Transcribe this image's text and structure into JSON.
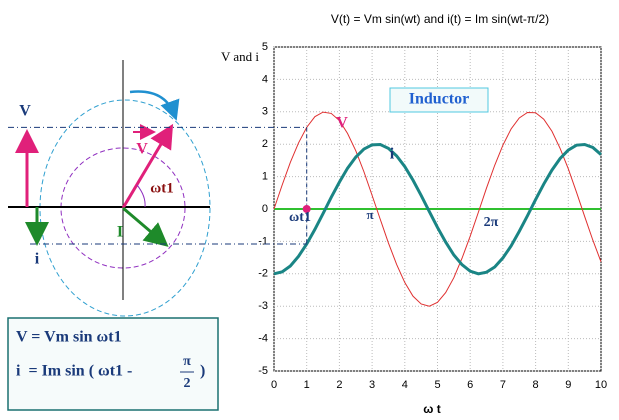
{
  "chart_data": {
    "type": "line",
    "title": "V(t) = Vm sin(wt) and i(t) = Im sin(wt-π/2)",
    "y_label": "V and i",
    "x_label": "ω t",
    "x": [
      0,
      0.25,
      0.5,
      0.75,
      1,
      1.25,
      1.5,
      1.75,
      2,
      2.25,
      2.5,
      2.75,
      3,
      3.25,
      3.5,
      3.75,
      4,
      4.25,
      4.5,
      4.75,
      5,
      5.25,
      5.5,
      5.75,
      6,
      6.25,
      6.5,
      6.75,
      7,
      7.25,
      7.5,
      7.75,
      8,
      8.25,
      8.5,
      8.75,
      9,
      9.25,
      9.5,
      9.75,
      10
    ],
    "series": [
      {
        "name": "V",
        "color": "#e03030",
        "values": [
          0,
          0.74,
          1.44,
          2.04,
          2.52,
          2.85,
          2.99,
          2.95,
          2.73,
          2.33,
          1.8,
          1.15,
          0.42,
          -0.32,
          -1.05,
          -1.71,
          -2.27,
          -2.69,
          -2.93,
          -3,
          -2.88,
          -2.58,
          -2.12,
          -1.52,
          -0.84,
          -0.1,
          0.65,
          1.35,
          1.97,
          2.47,
          2.81,
          2.98,
          2.97,
          2.77,
          2.4,
          1.87,
          1.24,
          0.52,
          -0.23,
          -0.96,
          -1.63
        ]
      },
      {
        "name": "i",
        "color": "#1a8585",
        "values": [
          -2,
          -1.94,
          -1.76,
          -1.46,
          -1.08,
          -0.63,
          -0.14,
          0.36,
          0.83,
          1.26,
          1.6,
          1.85,
          1.98,
          1.99,
          1.87,
          1.64,
          1.31,
          0.89,
          0.42,
          -0.08,
          -0.57,
          -1.02,
          -1.42,
          -1.72,
          -1.92,
          -2,
          -1.95,
          -1.79,
          -1.51,
          -1.14,
          -0.69,
          -0.21,
          0.29,
          0.77,
          1.2,
          1.56,
          1.82,
          1.97,
          1.99,
          1.9,
          1.68
        ]
      }
    ],
    "xlim": [
      0,
      10
    ],
    "ylim": [
      -5,
      5
    ],
    "xticks": [
      0,
      1,
      2,
      3,
      4,
      5,
      6,
      7,
      8,
      9,
      10
    ],
    "yticks": [
      -5,
      -4,
      -3,
      -2,
      -1,
      0,
      1,
      2,
      3,
      4,
      5
    ],
    "grid": true,
    "marker": {
      "x": 1,
      "y": 0
    },
    "annotations": [
      "Inductor",
      "ωt1",
      "π",
      "2π"
    ]
  },
  "diagram": {
    "labels": [
      "V",
      "V",
      "ωt1",
      "I",
      "i"
    ],
    "formula1": "V = Vm sin ωt1",
    "formula2": [
      "i  = Im sin ( ωt1 - ",
      "π",
      "2",
      ")"
    ]
  }
}
